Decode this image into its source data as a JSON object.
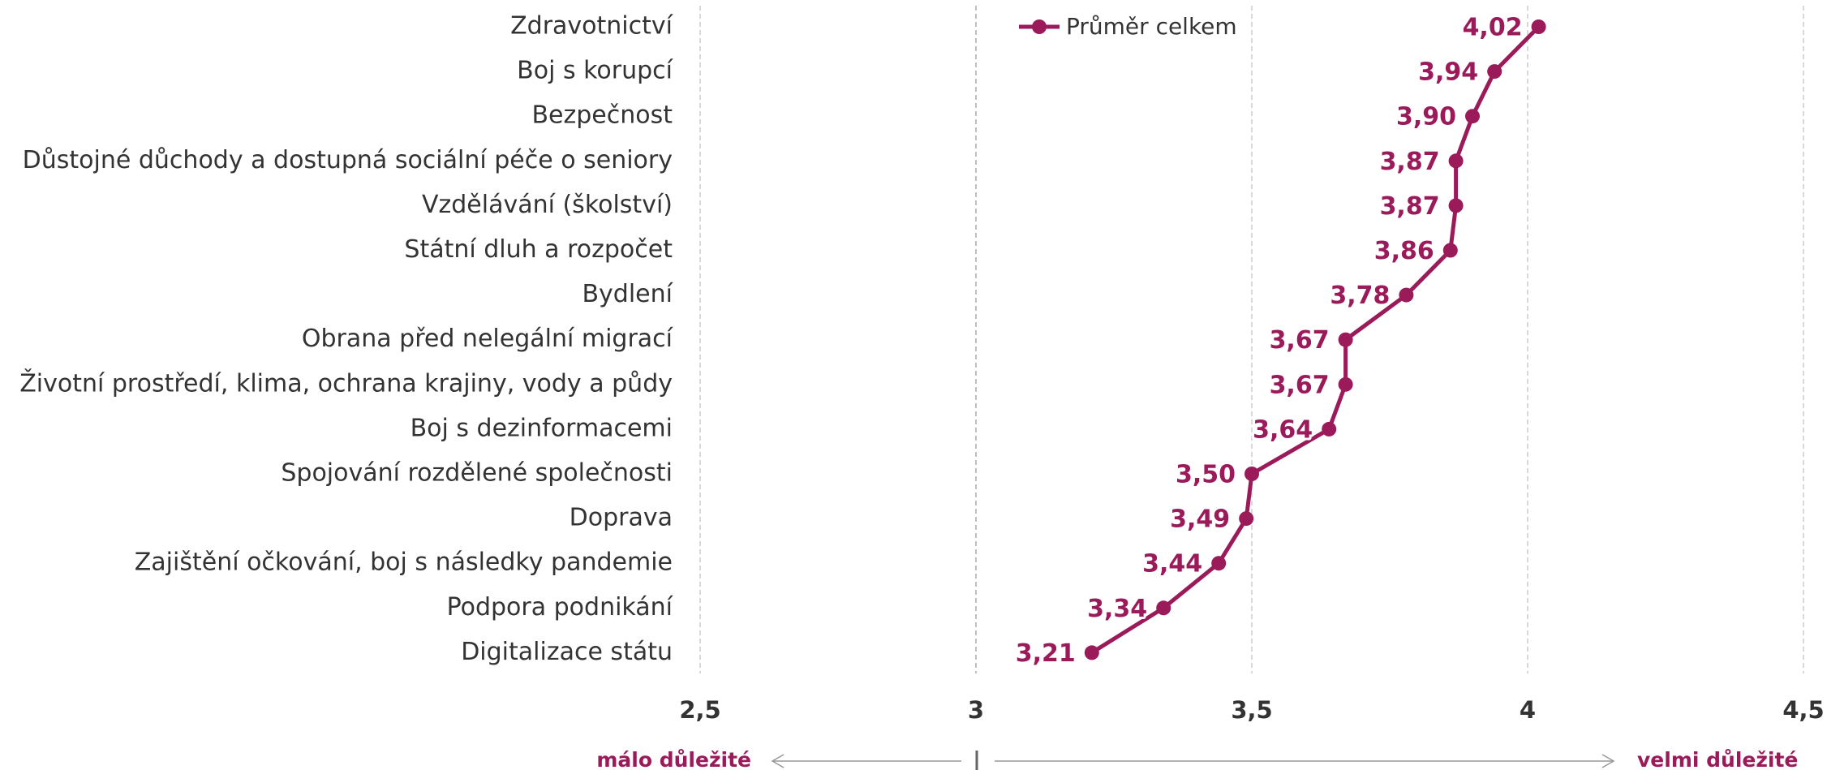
{
  "chart_data": {
    "type": "line",
    "categories": [
      "Zdravotnictví",
      "Boj s korupcí",
      "Bezpečnost",
      "Důstojné důchody a dostupná sociální péče o seniory",
      "Vzdělávání (školství)",
      "Státní dluh a rozpočet",
      "Bydlení",
      "Obrana před nelegální migrací",
      "Životní prostředí, klima, ochrana krajiny, vody a půdy",
      "Boj s dezinformacemi",
      "Spojování rozdělené společnosti",
      "Doprava",
      "Zajištění očkování, boj s následky pandemie",
      "Podpora podnikání",
      "Digitalizace státu"
    ],
    "series": [
      {
        "name": "Průměr celkem",
        "color": "#9b1b5a",
        "values": [
          4.02,
          3.94,
          3.9,
          3.87,
          3.87,
          3.86,
          3.78,
          3.67,
          3.67,
          3.64,
          3.5,
          3.49,
          3.44,
          3.34,
          3.21
        ],
        "value_labels": [
          "4,02",
          "3,94",
          "3,90",
          "3,87",
          "3,87",
          "3,86",
          "3,78",
          "3,67",
          "3,67",
          "3,64",
          "3,50",
          "3,49",
          "3,44",
          "3,34",
          "3,21"
        ]
      }
    ],
    "xlim": [
      2.5,
      4.5
    ],
    "xticks": [
      {
        "value": 2.5,
        "label": "2,5"
      },
      3,
      {
        "value": 3.5,
        "label": "3,5"
      },
      4,
      {
        "value": 4.5,
        "label": "4,5"
      }
    ],
    "grid": true,
    "legend": "top",
    "annotations": [
      "málo důležité",
      "velmi důležité"
    ]
  }
}
